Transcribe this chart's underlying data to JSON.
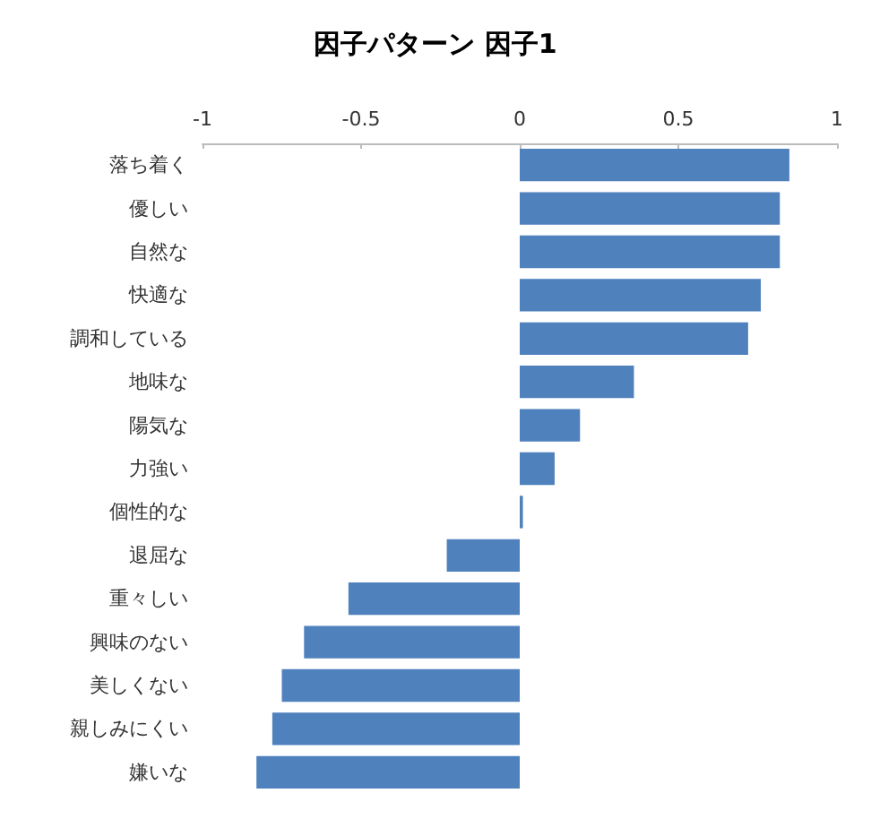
{
  "chart_data": {
    "type": "bar",
    "orientation": "horizontal",
    "title": "因子パターン 因子1",
    "categories": [
      "落ち着く",
      "優しい",
      "自然な",
      "快適な",
      "調和している",
      "地味な",
      "陽気な",
      "力強い",
      "個性的な",
      "退屈な",
      "重々しい",
      "興味のない",
      "美しくない",
      "親しみにくい",
      "嫌いな"
    ],
    "values": [
      0.85,
      0.82,
      0.82,
      0.76,
      0.72,
      0.36,
      0.19,
      0.11,
      0.01,
      -0.23,
      -0.54,
      -0.68,
      -0.75,
      -0.78,
      -0.83
    ],
    "color": "#4f81bd",
    "xlim": [
      -1,
      1
    ],
    "xticks": [
      -1,
      -0.5,
      0,
      0.5,
      1
    ]
  }
}
